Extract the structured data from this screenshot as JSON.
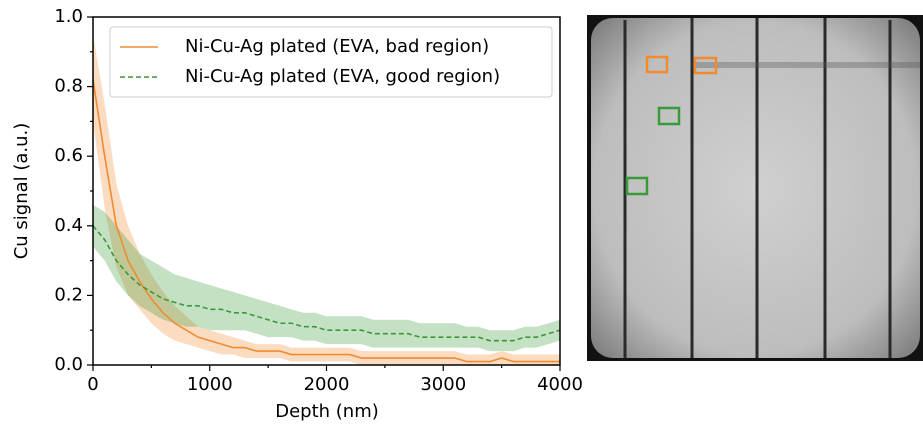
{
  "chart_data": {
    "type": "line",
    "xlabel": "Depth (nm)",
    "ylabel": "Cu signal (a.u.)",
    "x": [
      0,
      100,
      200,
      300,
      400,
      500,
      600,
      700,
      800,
      900,
      1000,
      1100,
      1200,
      1300,
      1400,
      1500,
      1600,
      1700,
      1800,
      1900,
      2000,
      2100,
      2200,
      2300,
      2400,
      2500,
      2600,
      2700,
      2800,
      2900,
      3000,
      3100,
      3200,
      3300,
      3400,
      3500,
      3600,
      3700,
      3800,
      3900,
      4000
    ],
    "series": [
      {
        "name": "Ni-Cu-Ag plated (EVA, bad region)",
        "color": "#f28a30",
        "linestyle": "solid",
        "values": [
          0.82,
          0.6,
          0.4,
          0.3,
          0.24,
          0.19,
          0.15,
          0.12,
          0.1,
          0.08,
          0.07,
          0.06,
          0.05,
          0.05,
          0.04,
          0.04,
          0.04,
          0.03,
          0.03,
          0.03,
          0.03,
          0.03,
          0.03,
          0.02,
          0.02,
          0.02,
          0.02,
          0.02,
          0.02,
          0.02,
          0.02,
          0.02,
          0.01,
          0.01,
          0.01,
          0.02,
          0.01,
          0.01,
          0.01,
          0.01,
          0.01
        ],
        "lower": [
          0.7,
          0.45,
          0.28,
          0.2,
          0.16,
          0.12,
          0.09,
          0.07,
          0.06,
          0.05,
          0.04,
          0.03,
          0.03,
          0.02,
          0.02,
          0.02,
          0.02,
          0.01,
          0.01,
          0.01,
          0.01,
          0.01,
          0.01,
          0,
          0,
          0,
          0,
          0,
          0,
          0,
          0,
          0,
          0,
          0,
          0,
          0,
          0,
          0,
          0,
          0,
          0
        ],
        "upper": [
          0.95,
          0.75,
          0.52,
          0.4,
          0.32,
          0.26,
          0.21,
          0.17,
          0.14,
          0.11,
          0.1,
          0.09,
          0.08,
          0.07,
          0.06,
          0.06,
          0.06,
          0.05,
          0.05,
          0.05,
          0.05,
          0.05,
          0.05,
          0.04,
          0.04,
          0.04,
          0.04,
          0.04,
          0.04,
          0.04,
          0.04,
          0.04,
          0.03,
          0.03,
          0.03,
          0.04,
          0.03,
          0.03,
          0.03,
          0.03,
          0.03
        ]
      },
      {
        "name": "Ni-Cu-Ag plated (EVA, good region)",
        "color": "#3a9a3a",
        "linestyle": "dashed",
        "values": [
          0.4,
          0.36,
          0.3,
          0.26,
          0.23,
          0.21,
          0.19,
          0.18,
          0.17,
          0.17,
          0.16,
          0.16,
          0.15,
          0.15,
          0.14,
          0.13,
          0.12,
          0.12,
          0.11,
          0.11,
          0.1,
          0.1,
          0.1,
          0.1,
          0.09,
          0.09,
          0.09,
          0.09,
          0.08,
          0.08,
          0.08,
          0.08,
          0.08,
          0.08,
          0.07,
          0.07,
          0.07,
          0.08,
          0.08,
          0.09,
          0.1
        ],
        "lower": [
          0.34,
          0.3,
          0.24,
          0.2,
          0.17,
          0.15,
          0.13,
          0.12,
          0.11,
          0.11,
          0.1,
          0.1,
          0.1,
          0.1,
          0.09,
          0.08,
          0.08,
          0.08,
          0.07,
          0.07,
          0.06,
          0.06,
          0.06,
          0.06,
          0.05,
          0.05,
          0.05,
          0.05,
          0.05,
          0.05,
          0.05,
          0.05,
          0.05,
          0.05,
          0.04,
          0.04,
          0.04,
          0.05,
          0.05,
          0.06,
          0.07
        ],
        "upper": [
          0.46,
          0.44,
          0.4,
          0.36,
          0.32,
          0.3,
          0.28,
          0.26,
          0.25,
          0.24,
          0.23,
          0.22,
          0.21,
          0.2,
          0.19,
          0.18,
          0.17,
          0.16,
          0.15,
          0.15,
          0.14,
          0.14,
          0.14,
          0.14,
          0.13,
          0.13,
          0.13,
          0.13,
          0.12,
          0.12,
          0.12,
          0.12,
          0.11,
          0.11,
          0.1,
          0.1,
          0.1,
          0.11,
          0.11,
          0.12,
          0.13
        ]
      }
    ],
    "xlim": [
      0,
      4000
    ],
    "xticks": [
      0,
      1000,
      2000,
      3000,
      4000
    ],
    "ylim": [
      0,
      1
    ],
    "yticks": [
      {
        "value": 0,
        "label": "0.0"
      },
      {
        "value": 0.2,
        "label": "0.2"
      },
      {
        "value": 0.4,
        "label": "0.4"
      },
      {
        "value": 0.6,
        "label": "0.6"
      },
      {
        "value": 0.8,
        "label": "0.8"
      },
      {
        "value": 1,
        "label": "1.0"
      }
    ],
    "legend": "upper right"
  }
}
